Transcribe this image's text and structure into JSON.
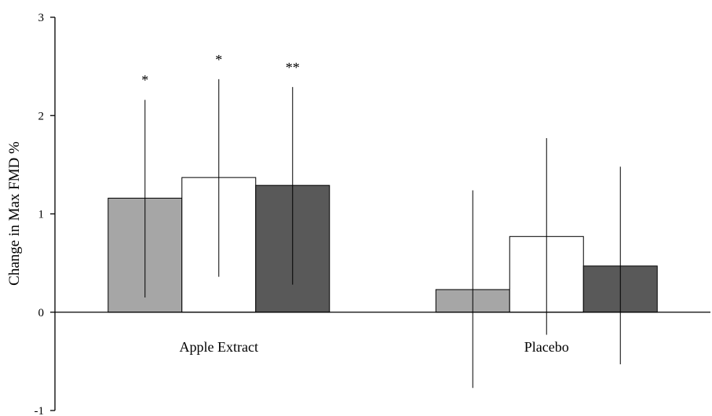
{
  "chart_data": {
    "type": "bar",
    "title": "",
    "xlabel": "",
    "ylabel": "Change in Max FMD %",
    "ylim": [
      -1,
      3
    ],
    "yticks": [
      -1,
      0,
      1,
      2,
      3
    ],
    "grid": false,
    "legend": "none",
    "categories": [
      "Apple Extract",
      "Placebo"
    ],
    "series": [
      {
        "color": "#a6a6a6",
        "values": [
          1.16,
          0.23
        ],
        "error_low": [
          0.15,
          -0.77
        ],
        "error_high": [
          2.16,
          1.24
        ]
      },
      {
        "color": "#ffffff",
        "values": [
          1.37,
          0.77
        ],
        "error_low": [
          0.36,
          -0.23
        ],
        "error_high": [
          2.37,
          1.77
        ]
      },
      {
        "color": "#595959",
        "values": [
          1.29,
          0.47
        ],
        "error_low": [
          0.28,
          -0.53
        ],
        "error_high": [
          2.29,
          1.48
        ]
      }
    ],
    "annotations": [
      {
        "category": 0,
        "series": 0,
        "text": "*"
      },
      {
        "category": 0,
        "series": 1,
        "text": "*"
      },
      {
        "category": 0,
        "series": 2,
        "text": "**"
      }
    ]
  }
}
